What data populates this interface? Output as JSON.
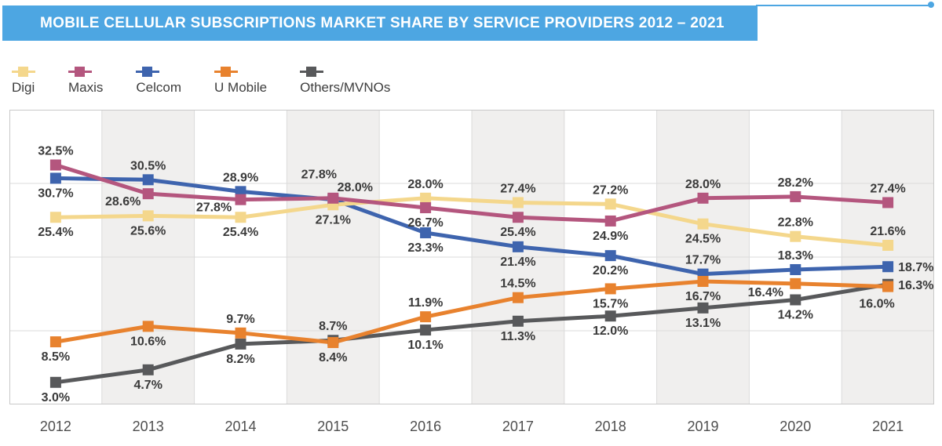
{
  "header": {
    "title": "MOBILE CELLULAR SUBSCRIPTIONS MARKET SHARE BY SERVICE PROVIDERS 2012 – 2021"
  },
  "theme": {
    "banner_color": "#4DA6E2",
    "plot_shade": "#F0EFEE",
    "grid_color": "#DBDBDB",
    "border_color": "#C9C9C9",
    "data_label_color": "#3A3A3A",
    "year_label_color": "#4F4F4F",
    "background": "#FFFFFF"
  },
  "chart_data": {
    "type": "line",
    "title": "MOBILE CELLULAR SUBSCRIPTIONS MARKET SHARE BY SERVICE PROVIDERS 2012 – 2021",
    "x": [
      "2012",
      "2013",
      "2014",
      "2015",
      "2016",
      "2017",
      "2018",
      "2019",
      "2020",
      "2021"
    ],
    "ylim": [
      0,
      40
    ],
    "gridlines_y": [
      10,
      20,
      30
    ],
    "grid": "vertical year columns, alternating shaded bands on odd years, horizontal lines every 10%",
    "legend_position": "top-left",
    "value_suffix": "%",
    "marker": "square",
    "draw_order": [
      "Celcom",
      "Digi",
      "Maxis",
      "Others/MVNOs",
      "U Mobile"
    ],
    "series": [
      {
        "name": "Digi",
        "color": "#F4D78C",
        "values": [
          25.4,
          25.6,
          25.4,
          27.1,
          28.0,
          27.4,
          27.2,
          24.5,
          22.8,
          21.6
        ],
        "label_pos": [
          "b",
          "b",
          "b",
          "b",
          "a",
          "a",
          "a",
          "b",
          "a",
          "a"
        ]
      },
      {
        "name": "Maxis",
        "color": "#B4567E",
        "values": [
          32.5,
          28.6,
          27.8,
          28.0,
          26.7,
          25.4,
          24.9,
          28.0,
          28.2,
          27.4
        ],
        "label_pos": [
          "a",
          {
            "dx": -32,
            "dy": 15
          },
          {
            "dx": -34,
            "dy": 15
          },
          {
            "dx": 28,
            "dy": -9
          },
          "b",
          "b",
          "b",
          "a",
          "a",
          "a"
        ]
      },
      {
        "name": "Celcom",
        "color": "#3E64AE",
        "values": [
          30.7,
          30.5,
          28.9,
          27.8,
          23.3,
          21.4,
          20.2,
          17.7,
          18.3,
          18.7
        ],
        "label_pos": [
          "b",
          "a",
          "a",
          {
            "dx": -18,
            "dy": -27
          },
          "b",
          "b",
          "b",
          "a",
          "a",
          {
            "dx": 13,
            "dy": 6,
            "anchor": "start"
          }
        ]
      },
      {
        "name": "U Mobile",
        "color": "#E8822E",
        "values": [
          8.5,
          10.6,
          9.7,
          8.4,
          11.9,
          14.5,
          15.7,
          16.7,
          16.4,
          16.0
        ],
        "label_pos": [
          "b",
          "b",
          "a",
          "b",
          "a",
          "a",
          "b",
          "b",
          {
            "dx": -38,
            "dy": 16
          },
          {
            "dx": -14,
            "dy": 27
          }
        ]
      },
      {
        "name": "Others/MVNOs",
        "color": "#58595B",
        "values": [
          3.0,
          4.7,
          8.2,
          8.7,
          10.1,
          11.3,
          12.0,
          13.1,
          14.2,
          16.3
        ],
        "label_pos": [
          "b",
          "b",
          "b",
          "a",
          "b",
          "b",
          "b",
          "b",
          "b",
          {
            "dx": 13,
            "dy": 6,
            "anchor": "start"
          }
        ]
      }
    ]
  }
}
